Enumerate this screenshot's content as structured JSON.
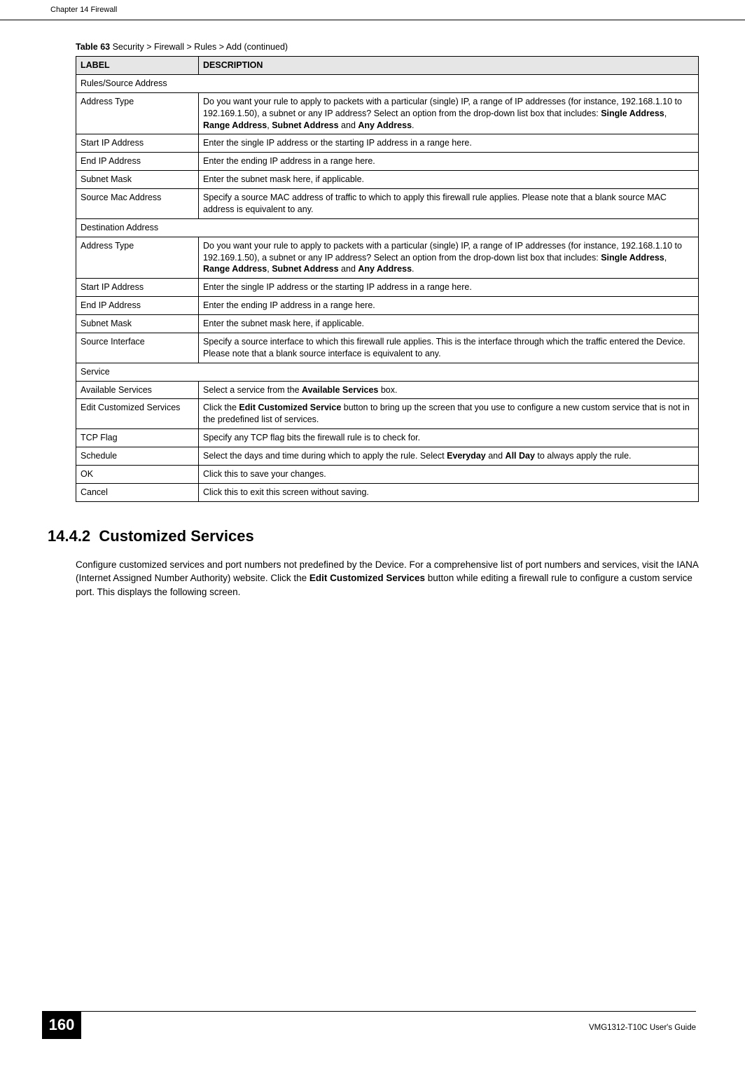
{
  "header": {
    "chapter": "Chapter 14 Firewall"
  },
  "table": {
    "caption_prefix": "Table 63",
    "caption_rest": "   Security > Firewall > Rules > Add (continued)",
    "col_label": "LABEL",
    "col_desc": "DESCRIPTION",
    "rows": [
      {
        "type": "section",
        "text": "Rules/Source Address"
      },
      {
        "label": "Address Type",
        "desc": "Do you want your rule to apply to packets with a particular (single) IP, a range of IP addresses (for instance, 192.168.1.10 to 192.169.1.50), a subnet or any IP address? Select an option from the drop-down list box that includes: ",
        "bold_list": [
          "Single Address",
          ", ",
          "Range Address",
          ", ",
          "Subnet Address",
          " and ",
          "Any Address",
          "."
        ]
      },
      {
        "label": "Start IP Address",
        "desc": "Enter the single IP address or the starting IP address in a range here."
      },
      {
        "label": "End IP Address",
        "desc": "Enter the ending IP address in a range here."
      },
      {
        "label": "Subnet Mask",
        "desc": "Enter the subnet mask here, if applicable."
      },
      {
        "label": "Source Mac Address",
        "desc": "Specify a source MAC address of traffic to which to apply this firewall rule applies. Please note that a blank source MAC address is equivalent to any."
      },
      {
        "type": "section",
        "text": "Destination Address"
      },
      {
        "label": "Address Type",
        "desc": "Do you want your rule to apply to packets with a particular (single) IP, a range of IP addresses (for instance, 192.168.1.10 to 192.169.1.50), a subnet or any IP address? Select an option from the drop-down list box that includes: ",
        "bold_list": [
          "Single Address",
          ", ",
          "Range Address",
          ", ",
          "Subnet Address",
          " and ",
          "Any Address",
          "."
        ]
      },
      {
        "label": "Start IP Address",
        "desc": "Enter the single IP address or the starting IP address in a range here."
      },
      {
        "label": "End IP Address",
        "desc": "Enter the ending IP address in a range here."
      },
      {
        "label": "Subnet Mask",
        "desc": "Enter the subnet mask here, if applicable."
      },
      {
        "label": "Source Interface",
        "desc": "Specify a source interface to which this firewall rule applies. This is the interface through which the traffic entered the Device. Please note that a blank source interface is equivalent to any."
      },
      {
        "type": "section",
        "text": "Service"
      },
      {
        "label": "Available Services",
        "desc": "Select a service from the ",
        "bold_list": [
          "Available Services",
          " box."
        ]
      },
      {
        "label": "Edit Customized Services",
        "desc": "Click the ",
        "bold_list": [
          "Edit Customized Service",
          " button to bring up the screen that you use to configure a new custom service that is not in the predefined list of services."
        ]
      },
      {
        "label": "TCP Flag",
        "desc": "Specify any TCP flag bits the firewall rule is to check for."
      },
      {
        "label": "Schedule",
        "desc": "Select the days and time during which to apply the rule. Select ",
        "bold_list": [
          "Everyday",
          " and ",
          "All Day",
          " to always apply the rule."
        ]
      },
      {
        "label": "OK",
        "desc": "Click this to save your changes."
      },
      {
        "label": "Cancel",
        "desc": "Click this to exit this screen without saving."
      }
    ]
  },
  "section": {
    "number": "14.4.2",
    "title": "Customized Services",
    "body_pre": "Configure customized services and port numbers not predefined by the Device. For a comprehensive list of port numbers and services, visit the IANA (Internet Assigned Number Authority) website. Click the ",
    "body_bold": "Edit Customized Services",
    "body_post": " button while editing a firewall rule to configure a custom service port. This displays the following screen."
  },
  "footer": {
    "page": "160",
    "guide": "VMG1312-T10C User's Guide"
  },
  "colors": {
    "text": "#000000",
    "bg": "#ffffff",
    "header_bg": "#e6e6e6",
    "page_box_bg": "#000000",
    "page_box_text": "#ffffff"
  }
}
